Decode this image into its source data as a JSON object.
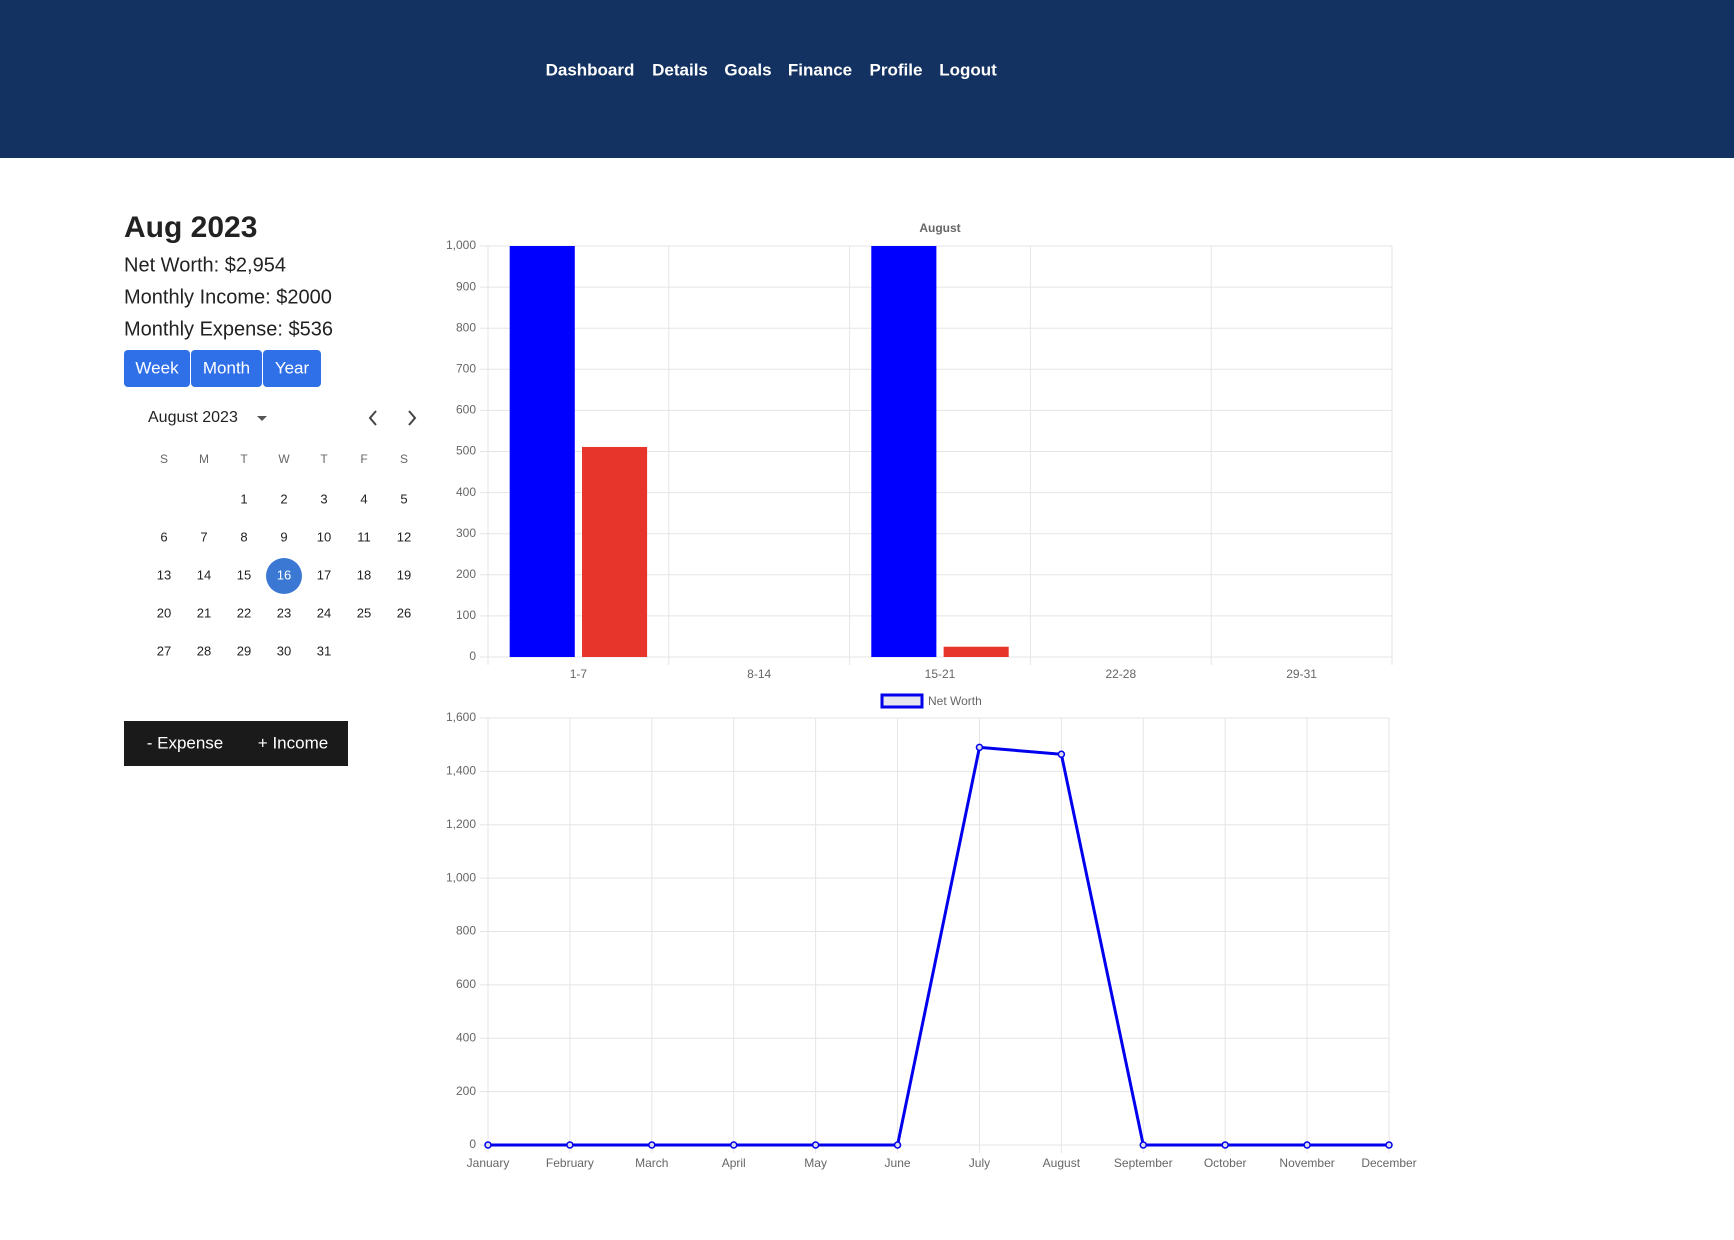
{
  "nav": [
    "Dashboard",
    "Details",
    "Goals",
    "Finance",
    "Profile",
    "Logout"
  ],
  "summary": {
    "title": "Aug 2023",
    "net_worth": "Net Worth: $2,954",
    "income": "Monthly Income: $2000",
    "expense": "Monthly Expense: $536"
  },
  "range_buttons": [
    "Week",
    "Month",
    "Year"
  ],
  "calendar": {
    "month_label": "August 2023",
    "weekdays": [
      "S",
      "M",
      "T",
      "W",
      "T",
      "F",
      "S"
    ],
    "days": [
      "1",
      "2",
      "3",
      "4",
      "5",
      "6",
      "7",
      "8",
      "9",
      "10",
      "11",
      "12",
      "13",
      "14",
      "15",
      "16",
      "17",
      "18",
      "19",
      "20",
      "21",
      "22",
      "23",
      "24",
      "25",
      "26",
      "27",
      "28",
      "29",
      "30",
      "31"
    ],
    "selected_day": "16"
  },
  "actions": [
    "- Expense",
    "+ Income"
  ],
  "chart_data": [
    {
      "type": "bar",
      "title": "August",
      "categories": [
        "1-7",
        "8-14",
        "15-21",
        "22-28",
        "29-31"
      ],
      "series": [
        {
          "color": "#0000ff",
          "values": [
            1000,
            0,
            1000,
            0,
            0
          ]
        },
        {
          "color": "#e8352b",
          "values": [
            511,
            0,
            25,
            0,
            0
          ]
        }
      ],
      "ylim": [
        0,
        1000
      ],
      "yticks": [
        0,
        100,
        200,
        300,
        400,
        500,
        600,
        700,
        800,
        900,
        {
          "value": 1000,
          "label": "1,000"
        }
      ],
      "grid": true
    },
    {
      "type": "line",
      "categories": [
        "January",
        "February",
        "March",
        "April",
        "May",
        "June",
        "July",
        "August",
        "September",
        "October",
        "November",
        "December"
      ],
      "series": [
        {
          "name": "Net Worth",
          "color": "#0000ee",
          "values": [
            0,
            0,
            0,
            0,
            0,
            0,
            1490,
            1464,
            0,
            0,
            0,
            0
          ]
        }
      ],
      "ylim": [
        0,
        1600
      ],
      "yticks": [
        0,
        200,
        400,
        600,
        800,
        {
          "value": 1000,
          "label": "1,000"
        },
        {
          "value": 1200,
          "label": "1,200"
        },
        {
          "value": 1400,
          "label": "1,400"
        },
        {
          "value": 1600,
          "label": "1,600"
        }
      ],
      "grid": true,
      "legend": "top"
    }
  ]
}
